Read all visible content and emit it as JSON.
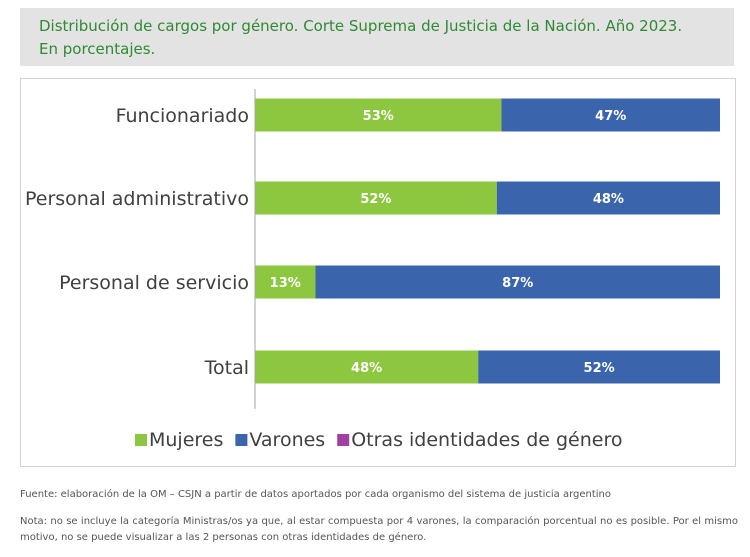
{
  "title_lines": [
    "Distribución de cargos por género. Corte Suprema de Justicia de la Nación. Año 2023.",
    "En porcentajes."
  ],
  "chart_data": {
    "type": "bar",
    "orientation": "horizontal",
    "stacked": true,
    "categories": [
      "Funcionariado",
      "Personal administrativo",
      "Personal de servicio",
      "Total"
    ],
    "series": [
      {
        "name": "Mujeres",
        "color": "#8dc63f",
        "values": [
          53,
          52,
          13,
          48
        ],
        "labels": [
          "53%",
          "52%",
          "13%",
          "48%"
        ]
      },
      {
        "name": "Varones",
        "color": "#3a65ad",
        "values": [
          47,
          48,
          87,
          52
        ],
        "labels": [
          "47%",
          "48%",
          "87%",
          "52%"
        ]
      },
      {
        "name": "Otras identidades de género",
        "color": "#a040a0",
        "values": [
          0,
          0,
          0,
          0
        ],
        "labels": [
          "",
          "",
          "",
          ""
        ]
      }
    ],
    "xlim": [
      0,
      100
    ],
    "grid": false,
    "legend": "bottom"
  },
  "footer": {
    "source": "Fuente: elaboración de la OM – CSJN a partir de datos aportados por cada organismo del sistema de justicia argentino",
    "note": "Nota: no se incluye la categoría Ministras/os ya que, al estar compuesta por 4 varones, la comparación porcentual no es posible. Por el mismo motivo, no se puede visualizar a las 2 personas con otras identidades de género."
  }
}
